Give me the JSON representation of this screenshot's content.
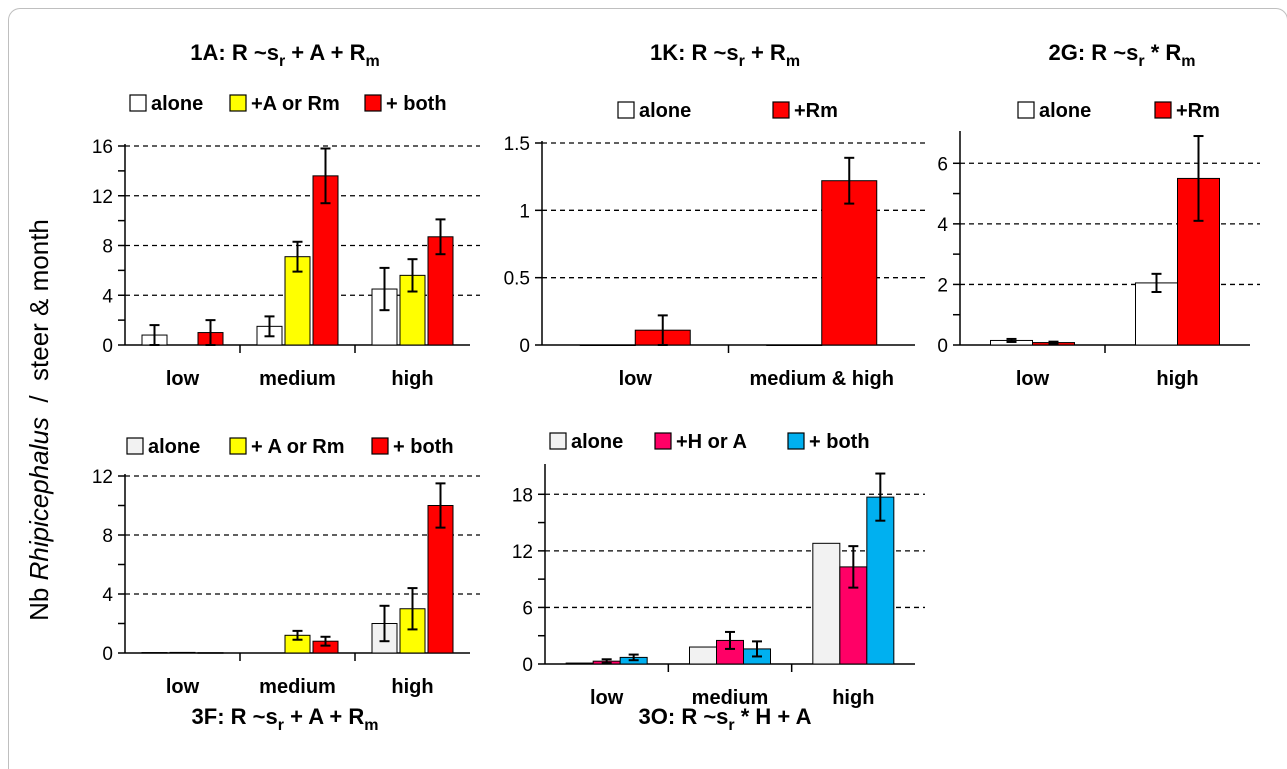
{
  "figure": {
    "ylabel_pre": "Nb ",
    "ylabel_italic": "Rhipicephalus",
    "ylabel_post": "  /  steer & month"
  },
  "chart_data": [
    {
      "id": "1A",
      "type": "bar",
      "title": {
        "main": "1A: R ~s",
        "sub": "r",
        "rest": " + A + R",
        "sub2": "m",
        "end": ""
      },
      "categories": [
        "low",
        "medium",
        "high"
      ],
      "series": [
        {
          "name": "alone",
          "color": "#ffffff",
          "values": [
            0.8,
            1.5,
            4.5
          ],
          "errors": [
            0.8,
            0.8,
            1.7
          ]
        },
        {
          "name": "+A or Rm",
          "color": "#ffff00",
          "values": [
            null,
            7.1,
            5.6
          ],
          "errors": [
            null,
            1.2,
            1.3
          ]
        },
        {
          "name": "+ both",
          "color": "#ff0000",
          "values": [
            1.0,
            13.6,
            8.7
          ],
          "errors": [
            1.0,
            2.2,
            1.4
          ]
        }
      ],
      "ylim": [
        0,
        16
      ],
      "yticks": [
        "0",
        "4",
        "8",
        "12",
        "16"
      ],
      "ytick_values": [
        0,
        4,
        8,
        12,
        16
      ],
      "grid": "dashed horizontal",
      "legend": "top"
    },
    {
      "id": "1K",
      "type": "bar",
      "title": {
        "main": "1K: R ~s",
        "sub": "r",
        "rest": " + R",
        "sub2": "m",
        "end": ""
      },
      "categories": [
        "low",
        "medium & high"
      ],
      "series": [
        {
          "name": "alone",
          "color": "#ffffff",
          "values": [
            0,
            0
          ],
          "errors": [
            null,
            null
          ]
        },
        {
          "name": "+Rm",
          "color": "#ff0000",
          "values": [
            0.11,
            1.22
          ],
          "errors": [
            0.11,
            0.17
          ]
        }
      ],
      "ylim": [
        0,
        1.5
      ],
      "yticks": [
        "0",
        "0.5",
        "1",
        "1.5"
      ],
      "ytick_values": [
        0,
        0.5,
        1,
        1.5
      ],
      "grid": "dashed horizontal",
      "legend": "top"
    },
    {
      "id": "2G",
      "type": "bar",
      "title": {
        "main": "2G: R ~s",
        "sub": "r",
        "rest": " * R",
        "sub2": "m",
        "end": ""
      },
      "categories": [
        "low",
        "high"
      ],
      "series": [
        {
          "name": "alone",
          "color": "#ffffff",
          "values": [
            0.15,
            2.05
          ],
          "errors": [
            0.05,
            0.3
          ]
        },
        {
          "name": "+Rm",
          "color": "#ff0000",
          "values": [
            0.08,
            5.5
          ],
          "errors": [
            0.03,
            1.4
          ]
        }
      ],
      "ylim": [
        0,
        7
      ],
      "yticks": [
        "0",
        "2",
        "4",
        "6"
      ],
      "ytick_values": [
        0,
        2,
        4,
        6
      ],
      "grid": "dashed horizontal",
      "legend": "top"
    },
    {
      "id": "3F",
      "type": "bar",
      "title": {
        "main": "3F: R ~s",
        "sub": "r",
        "rest": " + A + R",
        "sub2": "m",
        "end": ""
      },
      "categories": [
        "low",
        "medium",
        "high"
      ],
      "series": [
        {
          "name": "alone",
          "color": "#f2f2f2",
          "values": [
            0.03,
            null,
            2.0
          ],
          "errors": [
            null,
            null,
            1.2
          ]
        },
        {
          "name": "+ A or Rm",
          "color": "#ffff00",
          "values": [
            0.04,
            1.2,
            3.0
          ],
          "errors": [
            null,
            0.3,
            1.4
          ]
        },
        {
          "name": "+ both",
          "color": "#ff0000",
          "values": [
            0.02,
            0.8,
            10.0
          ],
          "errors": [
            null,
            0.3,
            1.5
          ]
        }
      ],
      "ylim": [
        0,
        12
      ],
      "yticks": [
        "0",
        "4",
        "8",
        "12"
      ],
      "ytick_values": [
        0,
        4,
        8,
        12
      ],
      "grid": "dashed horizontal",
      "legend": "top"
    },
    {
      "id": "3O",
      "type": "bar",
      "title": {
        "main": "3O: R ~s",
        "sub": "r",
        "rest": " * H + A",
        "sub2": "",
        "end": ""
      },
      "categories": [
        "low",
        "medium",
        "high"
      ],
      "series": [
        {
          "name": "alone",
          "color": "#f2f2f2",
          "values": [
            0.1,
            1.8,
            12.8
          ],
          "errors": [
            null,
            null,
            null
          ]
        },
        {
          "name": "+H or A",
          "color": "#ff0066",
          "values": [
            0.3,
            2.5,
            10.3
          ],
          "errors": [
            0.2,
            0.9,
            2.2
          ]
        },
        {
          "name": "+ both",
          "color": "#00b0f0",
          "values": [
            0.7,
            1.6,
            17.7
          ],
          "errors": [
            0.3,
            0.8,
            2.5
          ]
        }
      ],
      "ylim": [
        0,
        21
      ],
      "yticks": [
        "0",
        "6",
        "12",
        "18"
      ],
      "ytick_values": [
        0,
        6,
        12,
        18
      ],
      "grid": "dashed horizontal",
      "legend": "top"
    }
  ]
}
